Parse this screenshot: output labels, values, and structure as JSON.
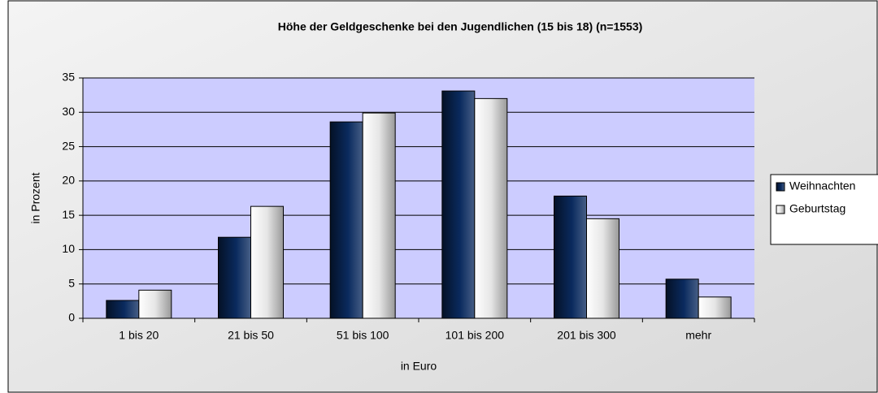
{
  "chart_data": {
    "type": "bar",
    "title": "Höhe der Geldgeschenke bei den Jugendlichen (15 bis 18) (n=1553)",
    "x_label": "in Euro",
    "y_label": "in Prozent",
    "categories": [
      "1 bis 20",
      "21 bis 50",
      "51 bis 100",
      "101 bis 200",
      "201 bis 300",
      "mehr"
    ],
    "series": [
      {
        "name": "Weihnachten",
        "color": "#0a2a5e",
        "values": [
          2.6,
          11.8,
          28.6,
          33.1,
          17.8,
          5.7
        ]
      },
      {
        "name": "Geburtstag",
        "color": "#ffffff",
        "values": [
          4.1,
          16.3,
          29.9,
          32.0,
          14.5,
          3.1
        ]
      }
    ],
    "ylim": [
      0,
      35
    ],
    "yticks": [
      0,
      5,
      10,
      15,
      20,
      25,
      30,
      35
    ],
    "grid": true,
    "legend": "right"
  }
}
